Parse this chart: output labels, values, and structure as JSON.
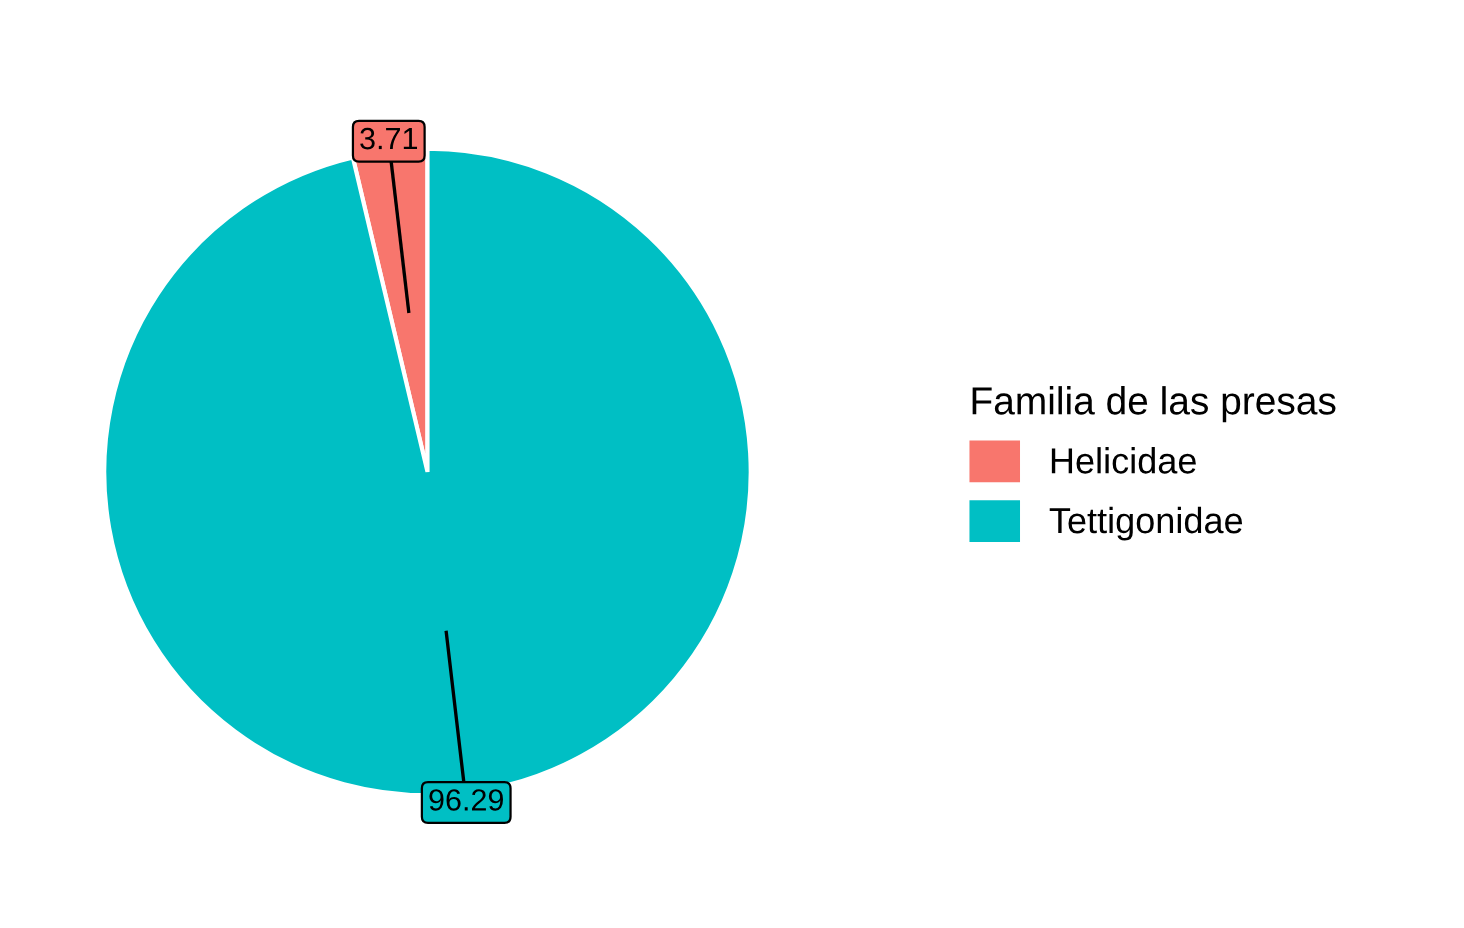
{
  "chart_data": {
    "type": "pie",
    "categories": [
      "Helicidae",
      "Tettigonidae"
    ],
    "values": [
      3.71,
      96.29
    ],
    "colors": [
      "#f8766d",
      "#00bfc4"
    ],
    "legend_title": "Familia de las presas",
    "legend": "right",
    "data_labels": true
  }
}
